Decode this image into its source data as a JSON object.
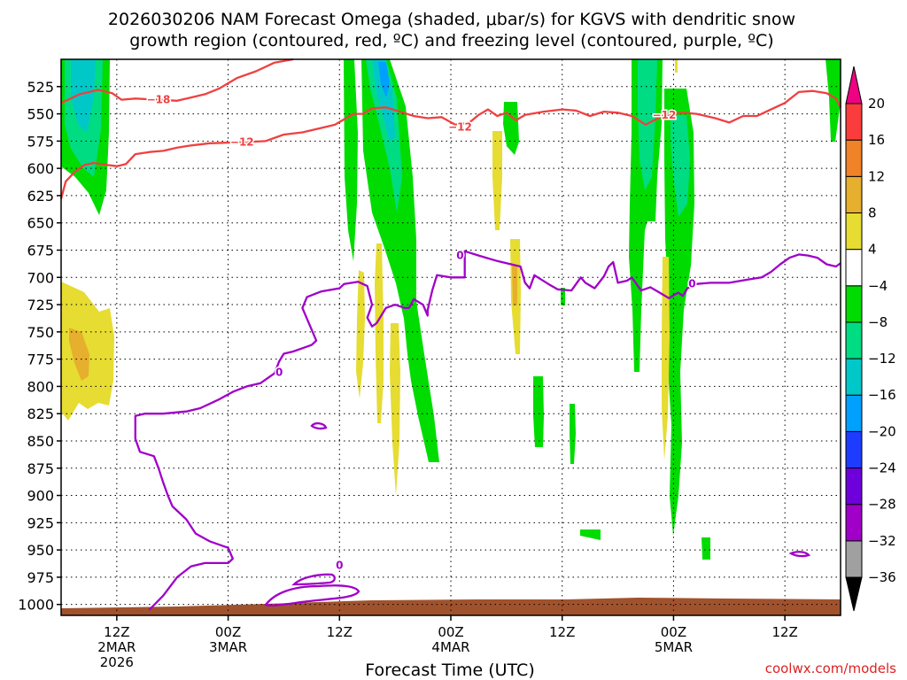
{
  "title": {
    "line1": "2026030206 NAM Forecast Omega (shaded, μbar/s) for KGVS with dendritic snow",
    "line2": "growth region (contoured, red, ºC) and freezing level (contoured, purple, ºC)"
  },
  "credit": "coolwx.com/models",
  "chart_data": {
    "type": "heatmap",
    "xlabel": "Forecast Time (UTC)",
    "x_range_hours": [
      0,
      84
    ],
    "x_ticks": [
      {
        "hour": 6,
        "lines": [
          "12Z",
          "2MAR",
          "2026"
        ]
      },
      {
        "hour": 18,
        "lines": [
          "00Z",
          "3MAR"
        ]
      },
      {
        "hour": 30,
        "lines": [
          "12Z"
        ]
      },
      {
        "hour": 42,
        "lines": [
          "00Z",
          "4MAR"
        ]
      },
      {
        "hour": 54,
        "lines": [
          "12Z"
        ]
      },
      {
        "hour": 66,
        "lines": [
          "00Z",
          "5MAR"
        ]
      },
      {
        "hour": 78,
        "lines": [
          "12Z"
        ]
      }
    ],
    "y_axis": "pressure (mb)",
    "y_range": [
      1010,
      500
    ],
    "y_ticks": [
      525,
      550,
      575,
      600,
      625,
      650,
      675,
      700,
      725,
      750,
      775,
      800,
      825,
      850,
      875,
      900,
      925,
      950,
      975,
      1000
    ],
    "grid": true,
    "colorbar": {
      "levels": [
        -36,
        -32,
        -28,
        -24,
        -20,
        -16,
        -12,
        -8,
        -4,
        4,
        8,
        12,
        16,
        20
      ],
      "tick_labels": [
        "20",
        "16",
        "12",
        "8",
        "4",
        "−4",
        "−8",
        "−12",
        "−16",
        "−20",
        "−24",
        "−28",
        "−32",
        "−36"
      ],
      "colors_low_to_high": [
        "#000000",
        "#a0a0a0",
        "#a000c8",
        "#6e00dc",
        "#1e3cff",
        "#00a0ff",
        "#00c8c8",
        "#00dc82",
        "#00dc00",
        "#ffffff",
        "#e6dc32",
        "#e6af2d",
        "#f08228",
        "#fa3c3c",
        "#f00082"
      ]
    },
    "contour_labels": [
      {
        "text": "−18",
        "color": "#f04040",
        "hour": 10.5,
        "p": 537
      },
      {
        "text": "−12",
        "color": "#f04040",
        "hour": 19.5,
        "p": 576
      },
      {
        "text": "−12",
        "color": "#f04040",
        "hour": 43,
        "p": 562
      },
      {
        "text": "−12",
        "color": "#f04040",
        "hour": 65,
        "p": 551
      },
      {
        "text": "0",
        "color": "#a000c8",
        "hour": 23.5,
        "p": 787
      },
      {
        "text": "0",
        "color": "#a000c8",
        "hour": 43,
        "p": 680
      },
      {
        "text": "0",
        "color": "#a000c8",
        "hour": 68,
        "p": 706
      },
      {
        "text": "0",
        "color": "#a000c8",
        "hour": 30,
        "p": 964
      }
    ],
    "series": [
      {
        "name": "-18",
        "color": "#f04040",
        "points": [
          [
            0,
            540
          ],
          [
            2,
            532
          ],
          [
            4,
            528
          ],
          [
            5.5,
            531
          ],
          [
            6.5,
            537
          ],
          [
            8,
            536
          ],
          [
            10.5,
            537
          ],
          [
            12.5,
            538
          ],
          [
            14,
            535
          ],
          [
            15.5,
            532
          ],
          [
            17,
            527
          ],
          [
            19,
            517
          ],
          [
            21,
            511
          ],
          [
            23,
            503
          ],
          [
            25,
            500
          ]
        ]
      },
      {
        "name": "-12",
        "color": "#f04040",
        "points": [
          [
            0,
            628
          ],
          [
            0.5,
            612
          ],
          [
            1.5,
            603
          ],
          [
            2.5,
            597
          ],
          [
            3.5,
            595
          ],
          [
            5,
            597
          ],
          [
            6,
            598
          ],
          [
            7,
            596
          ],
          [
            8,
            587
          ],
          [
            9.5,
            585
          ],
          [
            11,
            584
          ],
          [
            12.5,
            581
          ],
          [
            14,
            579
          ],
          [
            16,
            577
          ],
          [
            19.5,
            576
          ],
          [
            22,
            575
          ],
          [
            24,
            569
          ],
          [
            26,
            567
          ],
          [
            28,
            563
          ],
          [
            29.5,
            560
          ],
          [
            30.5,
            555
          ],
          [
            31.5,
            550
          ],
          [
            32.5,
            550
          ],
          [
            33.5,
            545
          ],
          [
            35,
            544
          ],
          [
            36.5,
            548
          ],
          [
            38,
            552
          ],
          [
            39.5,
            554
          ],
          [
            41,
            553
          ],
          [
            42.5,
            560
          ],
          [
            44,
            558
          ],
          [
            45,
            551
          ],
          [
            46,
            546
          ],
          [
            47,
            552
          ],
          [
            48,
            549
          ],
          [
            49,
            556
          ],
          [
            50,
            551
          ],
          [
            52,
            548
          ],
          [
            54,
            546
          ],
          [
            55.5,
            547
          ],
          [
            57,
            552
          ],
          [
            58.5,
            548
          ],
          [
            60,
            549
          ],
          [
            61.5,
            552
          ],
          [
            63,
            560
          ],
          [
            65,
            551
          ],
          [
            67,
            549
          ],
          [
            68.5,
            550
          ],
          [
            70.5,
            554
          ],
          [
            72,
            558
          ],
          [
            73.5,
            552
          ],
          [
            75,
            552
          ],
          [
            76.5,
            546
          ],
          [
            78,
            540
          ],
          [
            79.5,
            530
          ],
          [
            81,
            529
          ],
          [
            82.5,
            531
          ],
          [
            83.5,
            536
          ],
          [
            84,
            544
          ]
        ]
      },
      {
        "name": "0",
        "color": "#a000c8",
        "points": [
          [
            9.5,
            1005
          ],
          [
            11,
            992
          ],
          [
            12.5,
            975
          ],
          [
            14,
            965
          ],
          [
            15.5,
            962
          ],
          [
            18,
            962
          ],
          [
            18.5,
            958
          ],
          [
            18,
            948
          ],
          [
            16,
            942
          ],
          [
            14.5,
            935
          ],
          [
            13.5,
            922
          ],
          [
            12,
            910
          ],
          [
            11.5,
            900
          ],
          [
            11,
            888
          ],
          [
            10.5,
            875
          ],
          [
            10,
            864
          ],
          [
            8.5,
            860
          ],
          [
            8,
            848
          ],
          [
            8,
            835
          ],
          [
            8,
            827
          ],
          [
            9,
            825
          ],
          [
            11,
            825
          ],
          [
            13.5,
            823
          ],
          [
            15,
            820
          ],
          [
            17,
            812
          ],
          [
            18.5,
            805
          ],
          [
            20,
            800
          ],
          [
            21.5,
            797
          ],
          [
            23,
            788
          ],
          [
            23.5,
            777
          ],
          [
            24,
            770
          ],
          [
            25,
            768
          ],
          [
            26,
            765
          ],
          [
            27,
            762
          ],
          [
            27.5,
            758
          ],
          [
            27,
            748
          ],
          [
            26.5,
            738
          ],
          [
            26,
            728
          ],
          [
            26.5,
            718
          ],
          [
            28,
            713
          ],
          [
            30,
            710
          ],
          [
            30.5,
            706
          ],
          [
            32,
            704
          ],
          [
            33,
            708
          ],
          [
            33.5,
            725
          ],
          [
            33,
            737
          ],
          [
            33.5,
            745
          ],
          [
            34,
            742
          ],
          [
            35,
            728
          ],
          [
            36,
            725
          ],
          [
            37,
            728
          ],
          [
            37.5,
            728
          ],
          [
            38,
            720
          ],
          [
            39,
            725
          ],
          [
            39.5,
            735
          ],
          [
            39.5,
            730
          ],
          [
            40,
            712
          ],
          [
            40.5,
            698
          ],
          [
            42,
            700
          ],
          [
            43.5,
            700
          ],
          [
            43.5,
            690
          ],
          [
            43.5,
            676
          ],
          [
            45,
            680
          ],
          [
            47,
            685
          ],
          [
            48.5,
            688
          ],
          [
            49.5,
            690
          ],
          [
            50,
            705
          ],
          [
            50.5,
            710
          ],
          [
            51,
            698
          ],
          [
            52.5,
            706
          ],
          [
            53.5,
            711
          ],
          [
            55,
            712
          ],
          [
            56,
            700
          ],
          [
            56.5,
            705
          ],
          [
            57.5,
            710
          ],
          [
            58.5,
            699
          ],
          [
            59,
            690
          ],
          [
            59.5,
            686
          ],
          [
            60,
            705
          ],
          [
            61,
            703
          ],
          [
            61.5,
            700
          ],
          [
            62.5,
            712
          ],
          [
            63.5,
            709
          ],
          [
            64.5,
            714
          ],
          [
            65.5,
            719
          ],
          [
            66.5,
            714
          ],
          [
            67,
            717
          ],
          [
            67.5,
            710
          ],
          [
            68.5,
            706
          ],
          [
            70,
            705
          ],
          [
            72,
            705
          ],
          [
            74,
            702
          ],
          [
            75.5,
            700
          ],
          [
            76.5,
            695
          ],
          [
            77.5,
            688
          ],
          [
            78.5,
            682
          ],
          [
            79.5,
            679
          ],
          [
            80.5,
            680
          ],
          [
            81.5,
            682
          ],
          [
            82.5,
            688
          ],
          [
            83.5,
            690
          ],
          [
            84,
            687
          ]
        ]
      }
    ]
  }
}
